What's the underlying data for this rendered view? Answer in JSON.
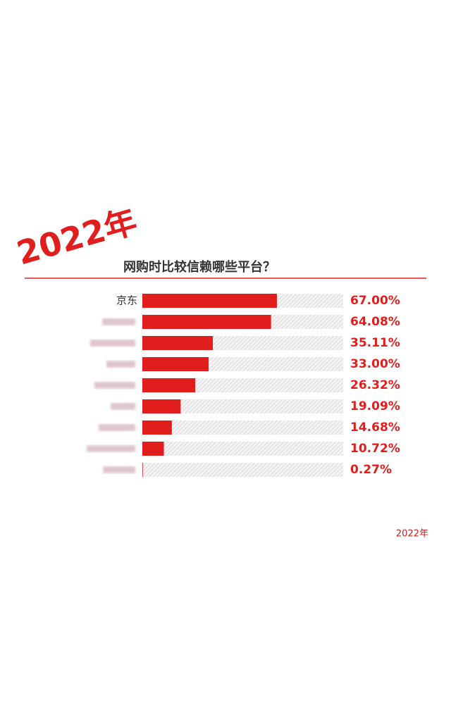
{
  "chart_data": {
    "type": "bar",
    "orientation": "horizontal",
    "title": "2022年",
    "subtitle": "网购时比较信赖哪些平台？",
    "footer": "2022年",
    "categories": [
      "京东",
      null,
      null,
      null,
      null,
      null,
      null,
      null,
      null
    ],
    "values": [
      67.0,
      64.08,
      35.11,
      33.0,
      26.32,
      19.09,
      14.68,
      10.72,
      0.27
    ],
    "value_labels": [
      "67.00%",
      "64.08%",
      "35.11%",
      "33.00%",
      "26.32%",
      "19.09%",
      "14.68%",
      "10.72%",
      "0.27%"
    ],
    "color": "#e01e1e",
    "xlim": [
      0,
      100
    ]
  }
}
